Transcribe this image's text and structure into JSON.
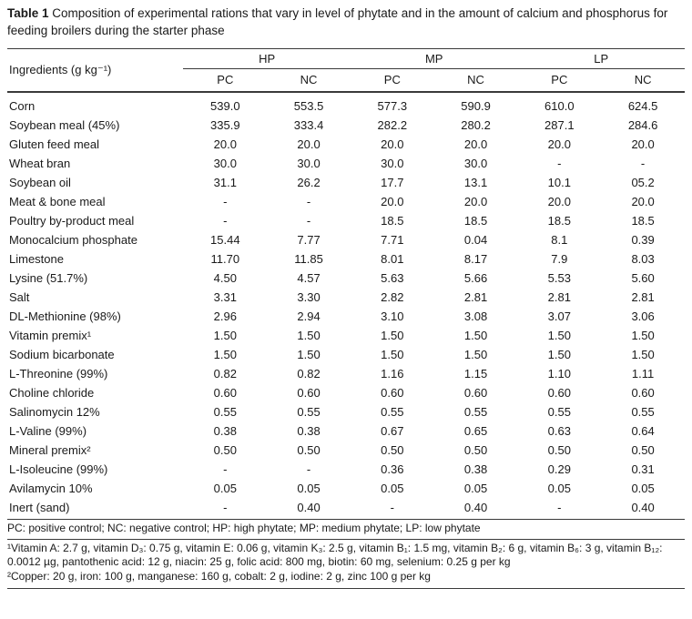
{
  "caption": {
    "label": "Table 1",
    "text": "Composition of experimental rations that vary in level of phytate and in the amount of calcium and phosphorus for feeding broilers during the starter phase"
  },
  "table": {
    "col_header": "Ingredients (g kg⁻¹)",
    "groups": [
      "HP",
      "MP",
      "LP"
    ],
    "subheaders": [
      "PC",
      "NC",
      "PC",
      "NC",
      "PC",
      "NC"
    ],
    "rows": [
      {
        "ingredient": "Corn",
        "values": [
          "539.0",
          "553.5",
          "577.3",
          "590.9",
          "610.0",
          "624.5"
        ]
      },
      {
        "ingredient": "Soybean meal (45%)",
        "values": [
          "335.9",
          "333.4",
          "282.2",
          "280.2",
          "287.1",
          "284.6"
        ]
      },
      {
        "ingredient": "Gluten feed meal",
        "values": [
          "20.0",
          "20.0",
          "20.0",
          "20.0",
          "20.0",
          "20.0"
        ]
      },
      {
        "ingredient": "Wheat bran",
        "values": [
          "30.0",
          "30.0",
          "30.0",
          "30.0",
          "-",
          "-"
        ]
      },
      {
        "ingredient": "Soybean oil",
        "values": [
          "31.1",
          "26.2",
          "17.7",
          "13.1",
          "10.1",
          "05.2"
        ]
      },
      {
        "ingredient": "Meat & bone meal",
        "values": [
          "-",
          "-",
          "20.0",
          "20.0",
          "20.0",
          "20.0"
        ]
      },
      {
        "ingredient": "Poultry by-product meal",
        "values": [
          "-",
          "-",
          "18.5",
          "18.5",
          "18.5",
          "18.5"
        ]
      },
      {
        "ingredient": "Monocalcium phosphate",
        "values": [
          "15.44",
          "7.77",
          "7.71",
          "0.04",
          "8.1",
          "0.39"
        ]
      },
      {
        "ingredient": "Limestone",
        "values": [
          "11.70",
          "11.85",
          "8.01",
          "8.17",
          "7.9",
          "8.03"
        ]
      },
      {
        "ingredient": "Lysine (51.7%)",
        "values": [
          "4.50",
          "4.57",
          "5.63",
          "5.66",
          "5.53",
          "5.60"
        ]
      },
      {
        "ingredient": "Salt",
        "values": [
          "3.31",
          "3.30",
          "2.82",
          "2.81",
          "2.81",
          "2.81"
        ]
      },
      {
        "ingredient": "DL-Methionine (98%)",
        "values": [
          "2.96",
          "2.94",
          "3.10",
          "3.08",
          "3.07",
          "3.06"
        ]
      },
      {
        "ingredient": "Vitamin premix¹",
        "values": [
          "1.50",
          "1.50",
          "1.50",
          "1.50",
          "1.50",
          "1.50"
        ]
      },
      {
        "ingredient": "Sodium bicarbonate",
        "values": [
          "1.50",
          "1.50",
          "1.50",
          "1.50",
          "1.50",
          "1.50"
        ]
      },
      {
        "ingredient": "L-Threonine (99%)",
        "values": [
          "0.82",
          "0.82",
          "1.16",
          "1.15",
          "1.10",
          "1.11"
        ]
      },
      {
        "ingredient": "Choline chloride",
        "values": [
          "0.60",
          "0.60",
          "0.60",
          "0.60",
          "0.60",
          "0.60"
        ]
      },
      {
        "ingredient": "Salinomycin 12%",
        "values": [
          "0.55",
          "0.55",
          "0.55",
          "0.55",
          "0.55",
          "0.55"
        ]
      },
      {
        "ingredient": "L-Valine (99%)",
        "values": [
          "0.38",
          "0.38",
          "0.67",
          "0.65",
          "0.63",
          "0.64"
        ]
      },
      {
        "ingredient": "Mineral premix²",
        "values": [
          "0.50",
          "0.50",
          "0.50",
          "0.50",
          "0.50",
          "0.50"
        ]
      },
      {
        "ingredient": "L-Isoleucine (99%)",
        "values": [
          "-",
          "-",
          "0.36",
          "0.38",
          "0.29",
          "0.31"
        ]
      },
      {
        "ingredient": "Avilamycin 10%",
        "values": [
          "0.05",
          "0.05",
          "0.05",
          "0.05",
          "0.05",
          "0.05"
        ]
      },
      {
        "ingredient": "Inert (sand)",
        "values": [
          "-",
          "0.40",
          "-",
          "0.40",
          "-",
          "0.40"
        ]
      }
    ]
  },
  "footnotes": {
    "abbrev": "PC: positive control; NC: negative control; HP: high phytate; MP: medium phytate; LP: low phytate",
    "note1": "¹Vitamin A: 2.7 g, vitamin D₃: 0.75 g, vitamin E: 0.06 g, vitamin K₃: 2.5 g, vitamin B₁: 1.5 mg, vitamin B₂: 6 g, vitamin B₆: 3 g, vitamin B₁₂: 0.0012 µg, pantothenic acid: 12 g, niacin: 25 g, folic acid: 800 mg, biotin: 60 mg, selenium: 0.25 g per kg",
    "note2": "²Copper: 20 g, iron: 100 g, manganese: 160 g, cobalt: 2 g, iodine: 2 g, zinc 100 g per kg"
  }
}
